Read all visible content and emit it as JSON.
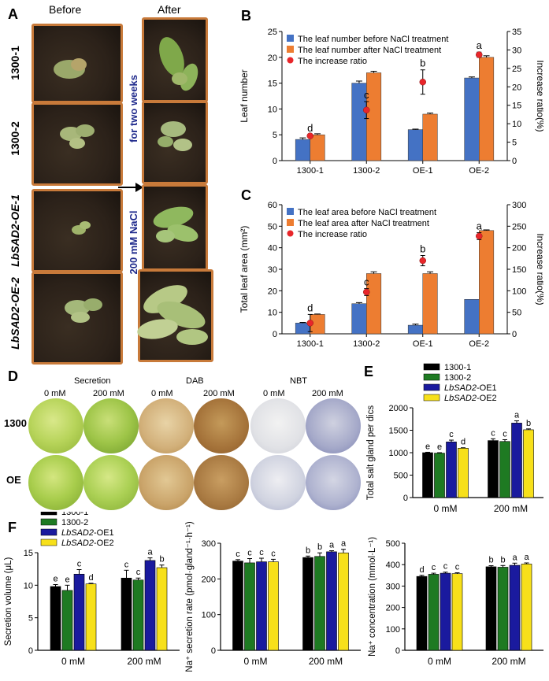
{
  "panelA": {
    "label": "A",
    "before": "Before",
    "after": "After",
    "rows": [
      "1300-1",
      "1300-2",
      "LbSAD2-OE-1",
      "LbSAD2-OE-2"
    ],
    "treatment_line1": "for two weeks",
    "treatment_line2": "200 mM NaCl"
  },
  "panelB": {
    "label": "B",
    "chart_data": {
      "type": "bar",
      "categories": [
        "1300-1",
        "1300-2",
        "OE-1",
        "OE-2"
      ],
      "ylabel": "Leaf number",
      "y2label": "Increase ratio(%)",
      "ylim": [
        0,
        25
      ],
      "y2lim": [
        0,
        35
      ],
      "yticks": [
        0,
        5,
        10,
        15,
        20,
        25
      ],
      "y2ticks": [
        0,
        5,
        10,
        15,
        20,
        25,
        30,
        35
      ],
      "series": [
        {
          "name": "The leaf number before NaCl treatment",
          "values": [
            4.1,
            15.0,
            6.0,
            16.0
          ],
          "err": [
            0.3,
            0.4,
            0.1,
            0.2
          ],
          "color": "#4472C4"
        },
        {
          "name": "The leaf number after NaCl treatment",
          "values": [
            5.0,
            17.0,
            9.0,
            20.0
          ],
          "err": [
            0.2,
            0.3,
            0.2,
            0.3
          ],
          "color": "#ED7D31"
        }
      ],
      "ratio": {
        "name": "The increase ratio",
        "values": [
          6.7,
          13.7,
          21.3,
          28.7
        ],
        "err": [
          0.3,
          2.3,
          3.3,
          0.7
        ],
        "letters": [
          "d",
          "c",
          "b",
          "a"
        ],
        "color": "#E8262A"
      },
      "legend": "top-left"
    }
  },
  "panelC": {
    "label": "C",
    "chart_data": {
      "type": "bar",
      "categories": [
        "1300-1",
        "1300-2",
        "OE-1",
        "OE-2"
      ],
      "ylabel": "Total leaf area (mm²)",
      "y2label": "Increase ratio(%)",
      "ylim": [
        0,
        60
      ],
      "y2lim": [
        0,
        300
      ],
      "yticks": [
        0,
        10,
        20,
        30,
        40,
        50,
        60
      ],
      "y2ticks": [
        0,
        50,
        100,
        150,
        200,
        250,
        300
      ],
      "series": [
        {
          "name": "The leaf area before NaCl treatment",
          "values": [
            5.0,
            14.0,
            4.0,
            16.0
          ],
          "err": [
            0.3,
            0.5,
            0.5,
            0.0
          ],
          "color": "#4472C4"
        },
        {
          "name": "The leaf area after NaCl treatment",
          "values": [
            9.0,
            28.0,
            28.0,
            48.0
          ],
          "err": [
            0.2,
            0.8,
            0.8,
            0.3
          ],
          "color": "#ED7D31"
        }
      ],
      "ratio": {
        "name": "The increase ratio",
        "values": [
          25,
          97,
          170,
          227
        ],
        "err": [
          20,
          8,
          12,
          8
        ],
        "letters": [
          "d",
          "c",
          "b",
          "a"
        ],
        "color": "#E8262A"
      },
      "legend": "top-left"
    }
  },
  "panelD": {
    "label": "D",
    "groups": [
      "Secretion",
      "DAB",
      "NBT"
    ],
    "conc": [
      "0 mM",
      "200 mM",
      "0 mM",
      "200 mM",
      "0 mM",
      "200 mM"
    ],
    "rows": [
      "1300",
      "OE"
    ]
  },
  "panelE": {
    "label": "E",
    "chart_data": {
      "type": "bar",
      "categories": [
        "0 mM",
        "200 mM"
      ],
      "ylabel": "Total salt gland per dics",
      "ylim": [
        0,
        2000
      ],
      "yticks": [
        0,
        500,
        1000,
        1500,
        2000
      ],
      "series": [
        {
          "name": "1300-1",
          "values": [
            1000,
            1270
          ],
          "err": [
            10,
            40
          ],
          "letters": [
            "e",
            "c"
          ],
          "color": "#000000"
        },
        {
          "name": "1300-2",
          "values": [
            990,
            1250
          ],
          "err": [
            10,
            40
          ],
          "letters": [
            "e",
            "c"
          ],
          "color": "#1E7A22"
        },
        {
          "name": "LbSAD2-OE1",
          "values": [
            1240,
            1660
          ],
          "err": [
            40,
            50
          ],
          "letters": [
            "c",
            "a"
          ],
          "color": "#1A1A9E"
        },
        {
          "name": "LbSAD2-OE2",
          "values": [
            1100,
            1510
          ],
          "err": [
            10,
            20
          ],
          "letters": [
            "d",
            "b"
          ],
          "color": "#F7E01A"
        }
      ],
      "legend": [
        "1300-1",
        "1300-2",
        "LbSAD2-OE1",
        "LbSAD2-OE2"
      ]
    }
  },
  "panelF": {
    "label": "F",
    "charts": [
      {
        "type": "bar",
        "categories": [
          "0 mM",
          "200 mM"
        ],
        "ylabel": "Secretion volume (μL)",
        "ylim": [
          0,
          15
        ],
        "yticks": [
          0,
          5,
          10,
          15
        ],
        "series": [
          {
            "name": "1300-1",
            "values": [
              9.8,
              11.1
            ],
            "err": [
              0.3,
              1.2
            ],
            "letters": [
              "e",
              "c"
            ],
            "color": "#000000"
          },
          {
            "name": "1300-2",
            "values": [
              9.2,
              10.8
            ],
            "err": [
              0.8,
              0.3
            ],
            "letters": [
              "e",
              "c"
            ],
            "color": "#1E7A22"
          },
          {
            "name": "LbSAD2-OE1",
            "values": [
              11.7,
              13.8
            ],
            "err": [
              0.7,
              0.4
            ],
            "letters": [
              "c",
              "a"
            ],
            "color": "#1A1A9E"
          },
          {
            "name": "LbSAD2-OE2",
            "values": [
              10.2,
              12.7
            ],
            "err": [
              0.1,
              0.4
            ],
            "letters": [
              "d",
              "b"
            ],
            "color": "#F7E01A"
          }
        ],
        "legend": [
          "1300-1",
          "1300-2",
          "LbSAD2-OE1",
          "LbSAD2-OE2"
        ]
      },
      {
        "type": "bar",
        "categories": [
          "0 mM",
          "200 mM"
        ],
        "ylabel": "Na⁺ secretion rate (pmol·gland⁻¹·h⁻¹)",
        "ylim": [
          0,
          300
        ],
        "yticks": [
          0,
          100,
          200,
          300
        ],
        "series": [
          {
            "name": "1300-1",
            "values": [
              250,
              260
            ],
            "err": [
              4,
              4
            ],
            "letters": [
              "c",
              "b"
            ],
            "color": "#000000"
          },
          {
            "name": "1300-2",
            "values": [
              245,
              263
            ],
            "err": [
              12,
              10
            ],
            "letters": [
              "c",
              "b"
            ],
            "color": "#1E7A22"
          },
          {
            "name": "LbSAD2-OE1",
            "values": [
              248,
              276
            ],
            "err": [
              10,
              3
            ],
            "letters": [
              "c",
              "a"
            ],
            "color": "#1A1A9E"
          },
          {
            "name": "LbSAD2-OE2",
            "values": [
              248,
              273
            ],
            "err": [
              7,
              10
            ],
            "letters": [
              "c",
              "a"
            ],
            "color": "#F7E01A"
          }
        ]
      },
      {
        "type": "bar",
        "categories": [
          "0 mM",
          "200 mM"
        ],
        "ylabel": "Na⁺ concentration (mmol·L⁻¹)",
        "ylim": [
          0,
          500
        ],
        "yticks": [
          0,
          100,
          200,
          300,
          400,
          500
        ],
        "series": [
          {
            "name": "1300-1",
            "values": [
              345,
              390
            ],
            "err": [
              5,
              5
            ],
            "letters": [
              "d",
              "b"
            ],
            "color": "#000000"
          },
          {
            "name": "1300-2",
            "values": [
              355,
              388
            ],
            "err": [
              5,
              8
            ],
            "letters": [
              "c",
              "b"
            ],
            "color": "#1E7A22"
          },
          {
            "name": "LbSAD2-OE1",
            "values": [
              360,
              397
            ],
            "err": [
              5,
              10
            ],
            "letters": [
              "c",
              "a"
            ],
            "color": "#1A1A9E"
          },
          {
            "name": "LbSAD2-OE2",
            "values": [
              358,
              403
            ],
            "err": [
              4,
              5
            ],
            "letters": [
              "c",
              "a"
            ],
            "color": "#F7E01A"
          }
        ]
      }
    ]
  }
}
